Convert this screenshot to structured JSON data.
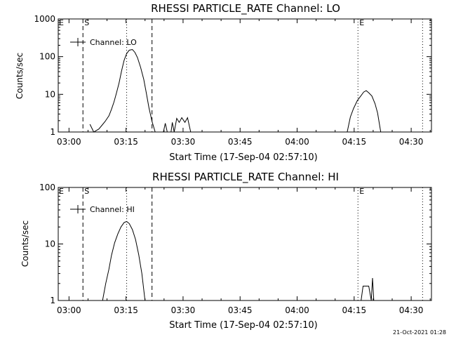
{
  "footer": {
    "timestamp": "21-Oct-2021 01:28"
  },
  "chart_data": [
    {
      "type": "line",
      "title": "RHESSI PARTICLE_RATE Channel: LO",
      "xlabel": "Start Time (17-Sep-04 02:57:10)",
      "ylabel": "Counts/sec",
      "yscale": "log",
      "xlim": [
        "02:57:10",
        "04:35:20"
      ],
      "ylim": [
        1,
        1000
      ],
      "x_ticks": [
        "03:00",
        "03:15",
        "03:30",
        "03:45",
        "04:00",
        "04:15",
        "04:30"
      ],
      "y_ticks": [
        "1",
        "10",
        "100",
        "1000"
      ],
      "legend": {
        "label": "Channel: LO",
        "position": "top-left"
      },
      "markers": [
        {
          "label": "S",
          "time": "03:03:40",
          "style": "dashed"
        },
        {
          "label": "",
          "time": "03:15:10",
          "style": "dotted"
        },
        {
          "label": "",
          "time": "03:21:50",
          "style": "dashed"
        },
        {
          "label": "E",
          "time": "04:16:00",
          "style": "dotted"
        },
        {
          "label": "",
          "time": "04:33:00",
          "style": "dotted"
        }
      ],
      "corner_labels": [
        "E",
        "S",
        "E"
      ],
      "series": [
        {
          "name": "Channel: LO",
          "points": [
            [
              "03:05:30",
              1.6
            ],
            [
              "03:06:30",
              1.0
            ],
            [
              "03:07:50",
              1.2
            ],
            [
              "03:08:40",
              1.5
            ],
            [
              "03:09:30",
              1.9
            ],
            [
              "03:10:30",
              2.7
            ],
            [
              "03:11:10",
              4.0
            ],
            [
              "03:11:50",
              6.3
            ],
            [
              "03:12:30",
              11
            ],
            [
              "03:13:10",
              20
            ],
            [
              "03:13:50",
              42
            ],
            [
              "03:14:30",
              80
            ],
            [
              "03:15:10",
              120
            ],
            [
              "03:15:50",
              148
            ],
            [
              "03:16:40",
              155
            ],
            [
              "03:17:20",
              130
            ],
            [
              "03:18:00",
              95
            ],
            [
              "03:18:50",
              52
            ],
            [
              "03:19:40",
              25
            ],
            [
              "03:20:20",
              11
            ],
            [
              "03:21:00",
              4.5
            ],
            [
              "03:21:50",
              1.9
            ],
            [
              "03:22:40",
              1.0
            ],
            [
              "03:24:50",
              1.0
            ],
            [
              "03:25:20",
              1.7
            ],
            [
              "03:25:50",
              1.0
            ],
            [
              "03:26:50",
              1.0
            ],
            [
              "03:27:10",
              1.8
            ],
            [
              "03:27:40",
              1.0
            ],
            [
              "03:28:20",
              2.3
            ],
            [
              "03:29:00",
              1.8
            ],
            [
              "03:29:40",
              2.4
            ],
            [
              "03:30:30",
              1.8
            ],
            [
              "03:31:10",
              2.4
            ],
            [
              "03:32:00",
              1.0
            ],
            [
              "04:13:10",
              1.0
            ],
            [
              "04:14:00",
              2.5
            ],
            [
              "04:14:50",
              4.2
            ],
            [
              "04:15:50",
              6.8
            ],
            [
              "04:16:40",
              8.8
            ],
            [
              "04:17:30",
              11.5
            ],
            [
              "04:18:10",
              12.5
            ],
            [
              "04:18:50",
              11
            ],
            [
              "04:19:40",
              9.0
            ],
            [
              "04:20:30",
              5.6
            ],
            [
              "04:21:10",
              3.2
            ],
            [
              "04:22:00",
              1.0
            ]
          ]
        }
      ]
    },
    {
      "type": "line",
      "title": "RHESSI PARTICLE_RATE Channel: HI",
      "xlabel": "Start Time (17-Sep-04 02:57:10)",
      "ylabel": "Counts/sec",
      "yscale": "log",
      "xlim": [
        "02:57:10",
        "04:35:20"
      ],
      "ylim": [
        1,
        100
      ],
      "x_ticks": [
        "03:00",
        "03:15",
        "03:30",
        "03:45",
        "04:00",
        "04:15",
        "04:30"
      ],
      "y_ticks": [
        "1",
        "10",
        "100"
      ],
      "legend": {
        "label": "Channel: HI",
        "position": "top-left"
      },
      "markers": [
        {
          "label": "S",
          "time": "03:03:40",
          "style": "dashed"
        },
        {
          "label": "",
          "time": "03:15:10",
          "style": "dotted"
        },
        {
          "label": "",
          "time": "03:21:50",
          "style": "dashed"
        },
        {
          "label": "E",
          "time": "04:16:00",
          "style": "dotted"
        },
        {
          "label": "",
          "time": "04:33:00",
          "style": "dotted"
        }
      ],
      "corner_labels": [
        "E",
        "S",
        "E"
      ],
      "series": [
        {
          "name": "Channel: HI",
          "points": [
            [
              "03:08:50",
              1.0
            ],
            [
              "03:09:40",
              2.0
            ],
            [
              "03:10:30",
              3.6
            ],
            [
              "03:11:10",
              6.3
            ],
            [
              "03:12:00",
              10.5
            ],
            [
              "03:12:50",
              15
            ],
            [
              "03:13:40",
              20
            ],
            [
              "03:14:30",
              24
            ],
            [
              "03:15:10",
              25
            ],
            [
              "03:15:50",
              23
            ],
            [
              "03:16:40",
              18
            ],
            [
              "03:17:30",
              12
            ],
            [
              "03:18:20",
              6.5
            ],
            [
              "03:19:10",
              3.0
            ],
            [
              "03:20:00",
              1.0
            ],
            [
              "04:16:50",
              1.0
            ],
            [
              "04:17:20",
              1.8
            ],
            [
              "04:18:50",
              1.8
            ],
            [
              "04:19:30",
              1.0
            ],
            [
              "04:19:50",
              2.5
            ],
            [
              "04:20:10",
              1.0
            ]
          ]
        }
      ]
    }
  ]
}
